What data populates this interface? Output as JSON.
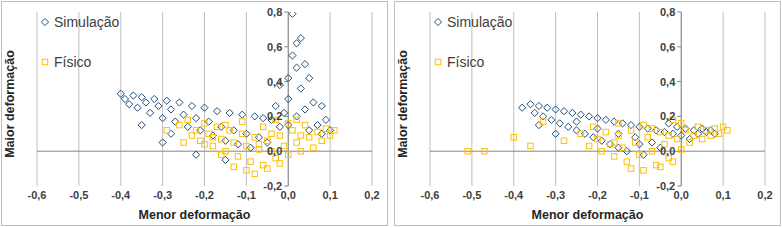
{
  "chart_data": [
    {
      "type": "scatter",
      "x_label": "Menor deformação",
      "y_label": "Maior deformação",
      "xlim": [
        -0.6,
        0.2
      ],
      "ylim": [
        -0.2,
        0.8
      ],
      "xticks": [
        {
          "value": -0.6,
          "label": "-0,6"
        },
        {
          "value": -0.5,
          "label": "-0,5"
        },
        {
          "value": -0.4,
          "label": "-0,4"
        },
        {
          "value": -0.3,
          "label": "-0,3"
        },
        {
          "value": -0.2,
          "label": "-0,2"
        },
        {
          "value": -0.1,
          "label": "-0,1"
        },
        {
          "value": 0,
          "label": "0,0"
        },
        {
          "value": 0.1,
          "label": "0,1"
        },
        {
          "value": 0.2,
          "label": "0,2"
        }
      ],
      "yticks": [
        {
          "value": -0.2,
          "label": "-0,2"
        },
        {
          "value": 0,
          "label": "0,0"
        },
        {
          "value": 0.2,
          "label": "0,2"
        },
        {
          "value": 0.4,
          "label": "0,4"
        },
        {
          "value": 0.6,
          "label": "0,6"
        },
        {
          "value": 0.8,
          "label": "0,8"
        }
      ],
      "grid": true,
      "legend": "top-left",
      "series": [
        {
          "name": "Simulação",
          "color": "#1f4e79",
          "marker": "diamond",
          "x": [
            -0.4,
            -0.39,
            -0.38,
            -0.37,
            -0.36,
            -0.35,
            -0.34,
            -0.33,
            -0.32,
            -0.31,
            -0.3,
            -0.29,
            -0.28,
            -0.27,
            -0.26,
            -0.25,
            -0.24,
            -0.23,
            -0.22,
            -0.21,
            -0.2,
            -0.19,
            -0.18,
            -0.17,
            -0.16,
            -0.15,
            -0.14,
            -0.13,
            -0.12,
            -0.11,
            -0.1,
            -0.09,
            -0.08,
            -0.07,
            -0.06,
            -0.05,
            -0.04,
            -0.03,
            -0.02,
            -0.01,
            0.0,
            0.0,
            0.01,
            0.01,
            0.02,
            0.02,
            0.03,
            0.03,
            0.04,
            0.0,
            0.02,
            0.04,
            0.05,
            0.06,
            0.07,
            0.08,
            0.09,
            0.1,
            -0.3,
            -0.22,
            -0.15,
            -0.35,
            -0.28,
            0.08,
            0.05,
            -0.02
          ],
          "values": [
            0.33,
            0.3,
            0.27,
            0.32,
            0.25,
            0.31,
            0.28,
            0.22,
            0.3,
            0.26,
            0.19,
            0.29,
            0.24,
            0.17,
            0.28,
            0.21,
            0.14,
            0.26,
            0.19,
            0.12,
            0.25,
            0.17,
            0.09,
            0.23,
            0.14,
            0.06,
            0.22,
            0.12,
            0.04,
            0.21,
            0.1,
            0.02,
            0.2,
            0.08,
            0.19,
            0.05,
            0.18,
            0.26,
            0.14,
            0.22,
            0.3,
            0.42,
            0.55,
            0.79,
            0.62,
            0.48,
            0.65,
            0.36,
            0.5,
            0.15,
            0.2,
            0.24,
            0.12,
            0.28,
            0.15,
            0.1,
            0.18,
            0.12,
            0.05,
            -0.02,
            -0.05,
            0.15,
            0.1,
            0.26,
            0.42,
            0.38
          ]
        },
        {
          "name": "Físico",
          "color": "#ffc000",
          "marker": "square",
          "x": [
            -0.26,
            -0.24,
            -0.22,
            -0.21,
            -0.2,
            -0.19,
            -0.18,
            -0.17,
            -0.16,
            -0.15,
            -0.14,
            -0.13,
            -0.12,
            -0.11,
            -0.1,
            -0.09,
            -0.08,
            -0.07,
            -0.06,
            -0.05,
            -0.04,
            -0.03,
            -0.02,
            -0.01,
            0.0,
            0.01,
            0.02,
            0.03,
            0.04,
            0.05,
            0.06,
            0.07,
            0.08,
            0.09,
            0.1,
            0.11,
            -0.13,
            -0.1,
            -0.08,
            -0.05,
            -0.02,
            -0.18,
            -0.23,
            -0.15,
            -0.11,
            -0.06,
            -0.03,
            0.0,
            0.02,
            -0.2,
            -0.16,
            -0.07,
            -0.04,
            0.03,
            -0.29,
            -0.25
          ],
          "values": [
            0.15,
            0.18,
            0.12,
            0.06,
            0.16,
            0.1,
            0.03,
            0.14,
            0.07,
            0.0,
            0.12,
            0.05,
            -0.03,
            0.1,
            0.03,
            -0.06,
            0.08,
            0.01,
            -0.08,
            0.06,
            0.0,
            -0.04,
            0.09,
            0.03,
            -0.02,
            0.12,
            0.05,
            0.0,
            0.15,
            0.08,
            0.02,
            0.11,
            0.06,
            0.13,
            0.09,
            0.12,
            -0.09,
            -0.11,
            -0.13,
            -0.1,
            -0.07,
            0.08,
            0.09,
            0.15,
            0.17,
            0.14,
            0.18,
            0.16,
            0.18,
            0.04,
            -0.02,
            0.04,
            0.1,
            0.09,
            0.12,
            0.05
          ]
        }
      ]
    },
    {
      "type": "scatter",
      "x_label": "Menor deformação",
      "y_label": "Maior deformação",
      "xlim": [
        -0.6,
        0.2
      ],
      "ylim": [
        -0.2,
        0.8
      ],
      "xticks": [
        {
          "value": -0.6,
          "label": "-0,6"
        },
        {
          "value": -0.5,
          "label": "-0,5"
        },
        {
          "value": -0.4,
          "label": "-0,4"
        },
        {
          "value": -0.3,
          "label": "-0,3"
        },
        {
          "value": -0.2,
          "label": "-0,2"
        },
        {
          "value": -0.1,
          "label": "-0,1"
        },
        {
          "value": 0,
          "label": "0,0"
        },
        {
          "value": 0.1,
          "label": "0,1"
        },
        {
          "value": 0.2,
          "label": "0,2"
        }
      ],
      "yticks": [
        {
          "value": -0.2,
          "label": "-0,2"
        },
        {
          "value": 0,
          "label": "0,0"
        },
        {
          "value": 0.2,
          "label": "0,2"
        },
        {
          "value": 0.4,
          "label": "0,4"
        },
        {
          "value": 0.6,
          "label": "0,6"
        },
        {
          "value": 0.8,
          "label": "0,8"
        }
      ],
      "grid": true,
      "legend": "top-left",
      "series": [
        {
          "name": "Simulação",
          "color": "#1f4e79",
          "marker": "diamond",
          "x": [
            -0.38,
            -0.36,
            -0.35,
            -0.34,
            -0.33,
            -0.32,
            -0.31,
            -0.3,
            -0.29,
            -0.28,
            -0.27,
            -0.26,
            -0.25,
            -0.24,
            -0.23,
            -0.22,
            -0.21,
            -0.2,
            -0.19,
            -0.18,
            -0.17,
            -0.16,
            -0.15,
            -0.14,
            -0.13,
            -0.12,
            -0.11,
            -0.1,
            -0.09,
            -0.08,
            -0.07,
            -0.06,
            -0.05,
            -0.04,
            -0.03,
            -0.02,
            -0.01,
            0.0,
            0.01,
            0.02,
            0.03,
            0.04,
            0.05,
            0.06,
            0.07,
            0.08,
            -0.3,
            -0.25,
            -0.2,
            -0.15,
            -0.1,
            -0.34
          ],
          "values": [
            0.25,
            0.27,
            0.22,
            0.26,
            0.2,
            0.25,
            0.18,
            0.24,
            0.16,
            0.23,
            0.14,
            0.22,
            0.12,
            0.21,
            0.1,
            0.2,
            0.08,
            0.19,
            0.06,
            0.18,
            0.04,
            0.17,
            0.02,
            0.16,
            0.0,
            0.15,
            0.08,
            0.14,
            -0.02,
            0.13,
            0.05,
            0.12,
            0.02,
            0.11,
            0.16,
            0.1,
            0.14,
            0.09,
            0.13,
            0.07,
            0.12,
            0.1,
            0.13,
            0.11,
            0.12,
            0.1,
            0.1,
            0.17,
            0.13,
            0.1,
            0.04,
            0.15
          ]
        },
        {
          "name": "Físico",
          "color": "#ffc000",
          "marker": "square",
          "x": [
            -0.51,
            -0.47,
            -0.4,
            -0.36,
            -0.33,
            -0.28,
            -0.24,
            -0.22,
            -0.21,
            -0.2,
            -0.19,
            -0.18,
            -0.17,
            -0.16,
            -0.15,
            -0.14,
            -0.13,
            -0.12,
            -0.11,
            -0.1,
            -0.09,
            -0.08,
            -0.07,
            -0.06,
            -0.05,
            -0.04,
            -0.03,
            -0.02,
            -0.01,
            0.0,
            0.01,
            0.02,
            0.03,
            0.04,
            0.05,
            0.06,
            0.07,
            0.08,
            0.09,
            0.1,
            0.11,
            -0.12,
            -0.09,
            -0.05,
            -0.02,
            -0.15,
            -0.07,
            0.0,
            -0.03,
            -0.16
          ],
          "values": [
            0.0,
            0.0,
            0.08,
            0.03,
            0.17,
            0.06,
            0.1,
            0.03,
            0.14,
            0.07,
            0.0,
            0.11,
            0.04,
            -0.03,
            0.09,
            0.02,
            -0.06,
            0.12,
            0.05,
            -0.02,
            0.15,
            0.08,
            0.0,
            -0.08,
            0.11,
            0.04,
            -0.04,
            0.18,
            0.07,
            0.01,
            0.12,
            0.05,
            0.09,
            0.14,
            0.07,
            0.12,
            0.09,
            0.13,
            0.1,
            0.14,
            0.12,
            -0.1,
            -0.11,
            -0.09,
            -0.06,
            0.16,
            0.13,
            0.16,
            0.09,
            0.05
          ]
        }
      ]
    }
  ]
}
